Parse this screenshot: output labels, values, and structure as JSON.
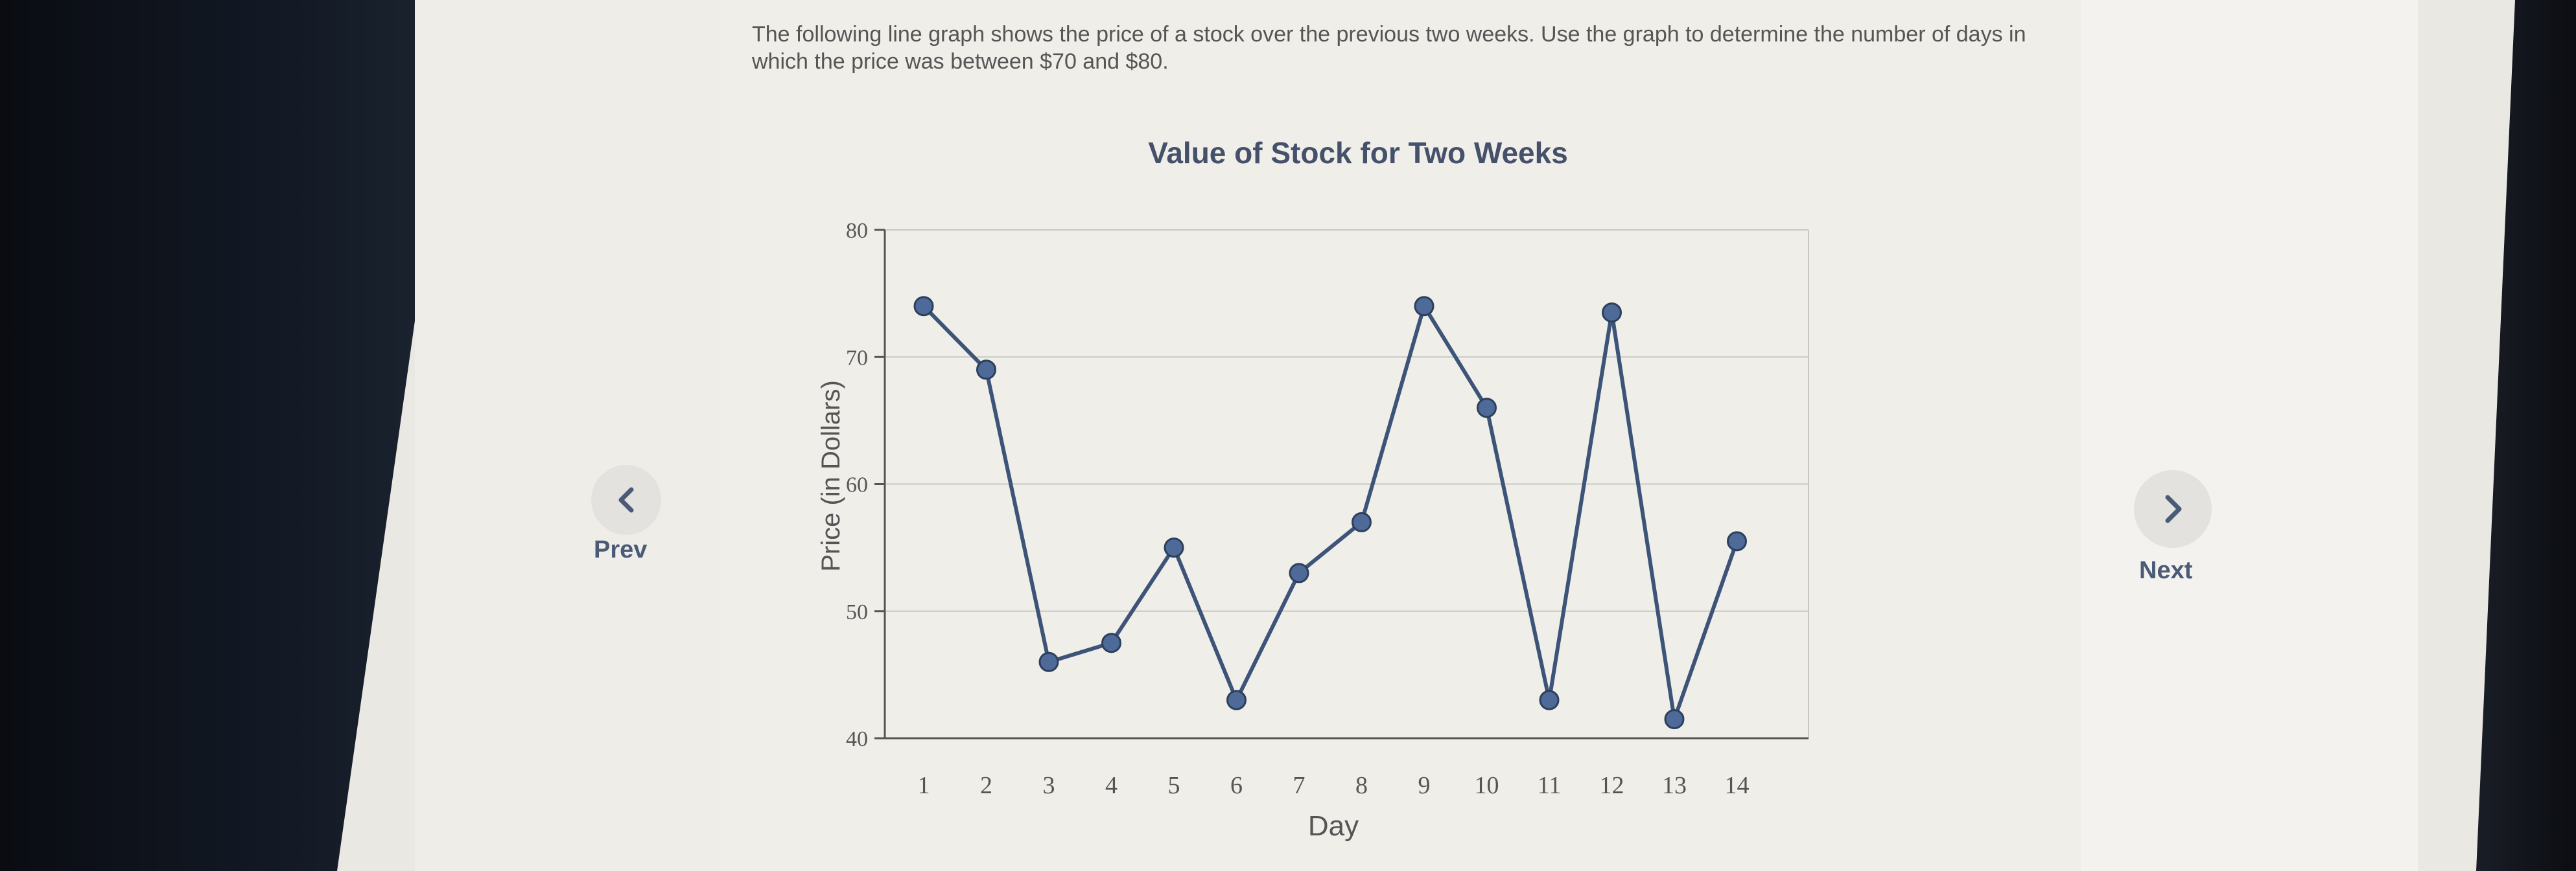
{
  "question": "The following line graph shows the price of a stock over the previous two weeks. Use the graph to determine the number of days in which the price was between $70 and $80.",
  "nav": {
    "prev_label": "Prev",
    "next_label": "Next"
  },
  "colors": {
    "line": "#3d5478",
    "point": "#4d6a98",
    "grid": "#c9c9c3",
    "axis": "#555555"
  },
  "chart_data": {
    "type": "line",
    "title": "Value of Stock for Two Weeks",
    "xlabel": "Day",
    "ylabel": "Price (in Dollars)",
    "ylim": [
      40,
      80
    ],
    "yticks": [
      40,
      50,
      60,
      70,
      80
    ],
    "grid": true,
    "x": [
      1,
      2,
      3,
      4,
      5,
      6,
      7,
      8,
      9,
      10,
      11,
      12,
      13,
      14
    ],
    "series": [
      {
        "values": [
          74,
          69,
          46,
          47.5,
          55,
          43,
          53,
          57,
          74,
          66,
          43,
          73.5,
          41.5,
          55.5
        ]
      }
    ]
  }
}
